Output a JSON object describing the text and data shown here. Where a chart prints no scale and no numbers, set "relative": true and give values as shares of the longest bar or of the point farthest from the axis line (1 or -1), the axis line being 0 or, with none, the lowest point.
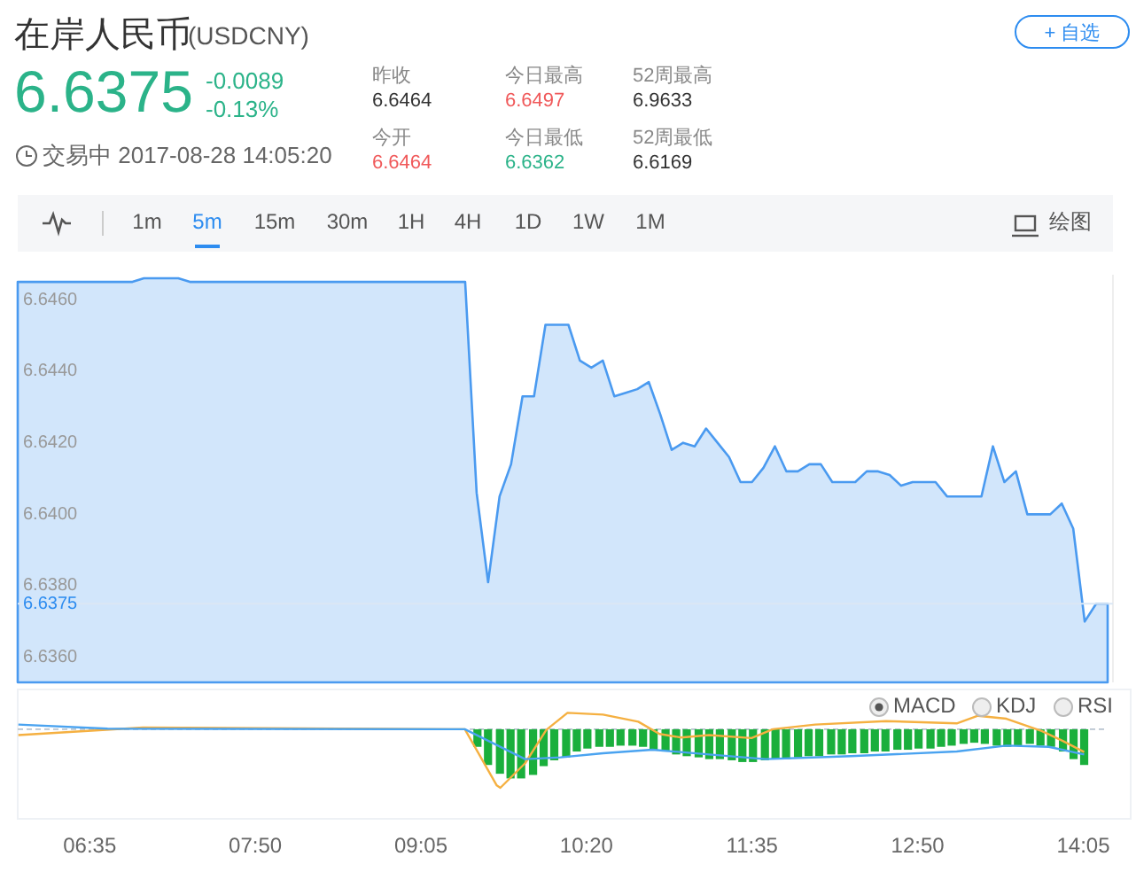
{
  "chart_data": [
    {
      "type": "area",
      "title": "在岸人民币",
      "subtitle": "(USDCNY)",
      "annotations": [
        "6.6375",
        "-0.0089",
        "-0.13%",
        "交易中 2017-08-28 14:05:20",
        "昨收",
        "6.6464",
        "今日最高",
        "6.6497",
        "52周最高",
        "6.9633",
        "今开",
        "6.6464",
        "今日最低",
        "6.6362",
        "52周最低",
        "6.6169",
        "+ 自选",
        "1m",
        "5m",
        "15m",
        "30m",
        "1H",
        "4H",
        "1D",
        "1W",
        "1M",
        "绘图"
      ],
      "color": "#4a9af0",
      "categories": [
        null,
        null,
        null,
        null,
        null,
        null,
        null,
        null,
        null,
        null,
        null,
        null,
        null,
        null,
        null,
        null,
        null,
        null,
        null,
        null,
        null,
        null,
        null,
        null,
        null,
        null,
        null,
        null,
        null,
        null,
        null,
        null,
        null,
        null,
        null,
        null,
        null,
        null,
        null,
        null,
        null,
        null,
        null,
        null,
        null,
        null,
        null,
        null,
        null,
        null,
        null,
        null,
        null,
        null,
        null,
        null,
        null,
        null,
        null,
        null,
        null,
        null,
        null,
        null,
        null,
        null,
        null,
        null,
        null,
        null,
        null,
        null,
        null,
        null,
        null,
        null,
        null,
        null,
        null,
        null,
        null,
        null,
        null,
        null,
        null,
        null,
        null,
        null,
        null,
        null,
        null,
        null,
        null,
        null,
        null,
        null
      ],
      "values": [
        6.6465,
        6.6465,
        6.6465,
        6.6465,
        6.6465,
        6.6465,
        6.6465,
        6.6465,
        6.6465,
        6.6465,
        6.6465,
        6.6466,
        6.6466,
        6.6466,
        6.6466,
        6.6465,
        6.6465,
        6.6465,
        6.6465,
        6.6465,
        6.6465,
        6.6465,
        6.6465,
        6.6465,
        6.6465,
        6.6465,
        6.6465,
        6.6465,
        6.6465,
        6.6465,
        6.6465,
        6.6465,
        6.6465,
        6.6465,
        6.6465,
        6.6465,
        6.6465,
        6.6465,
        6.6465,
        6.6465,
        6.6406,
        6.6381,
        6.6405,
        6.6414,
        6.6433,
        6.6433,
        6.6453,
        6.6453,
        6.6453,
        6.6443,
        6.6441,
        6.6443,
        6.6433,
        6.6434,
        6.6435,
        6.6437,
        6.6428,
        6.6418,
        6.642,
        6.6419,
        6.6424,
        6.642,
        6.6416,
        6.6409,
        6.6409,
        6.6413,
        6.6419,
        6.6412,
        6.6412,
        6.6414,
        6.6414,
        6.6409,
        6.6409,
        6.6409,
        6.6412,
        6.6412,
        6.6411,
        6.6408,
        6.6409,
        6.6409,
        6.6409,
        6.6405,
        6.6405,
        6.6405,
        6.6405,
        6.6419,
        6.6409,
        6.6412,
        6.64,
        6.64,
        6.64,
        6.6403,
        6.6396,
        6.637,
        6.6375,
        6.6375
      ],
      "ylim": [
        6.6353,
        6.6467
      ],
      "yticks": [
        {
          "value": 6.646,
          "label": "6.6460"
        },
        {
          "value": 6.644,
          "label": "6.6440"
        },
        {
          "value": 6.642,
          "label": "6.6420"
        },
        {
          "value": 6.64,
          "label": "6.6400"
        },
        {
          "value": 6.638,
          "label": "6.6380"
        },
        {
          "value": 6.636,
          "label": "6.6360"
        }
      ],
      "ref_lines": [
        {
          "axis": "y",
          "value": 6.6375,
          "label": "6.6375",
          "color": "#dbe7f5"
        }
      ],
      "tick_labels": "y"
    },
    {
      "type": "bar",
      "relative": true,
      "annotations": [
        "MACD",
        "KDJ",
        "RSI"
      ],
      "xlim": [
        6.04,
        14.12
      ],
      "xticks": [
        {
          "value": 6.5833,
          "label": "06:35"
        },
        {
          "value": 7.8333,
          "label": "07:50"
        },
        {
          "value": 9.0833,
          "label": "09:05"
        },
        {
          "value": 10.3333,
          "label": "10:20"
        },
        {
          "value": 11.5833,
          "label": "11:35"
        },
        {
          "value": 12.8333,
          "label": "12:50"
        },
        {
          "value": 14.0833,
          "label": "14:05"
        }
      ],
      "tick_labels": "x",
      "ref_lines": [
        {
          "axis": "y",
          "value": 0,
          "color": "#b8c4d0",
          "line_style": "dashed"
        }
      ],
      "series": [
        {
          "type": "bar",
          "color": "#1aaf3c",
          "x": [
            9.51,
            9.59,
            9.68,
            9.76,
            9.84,
            9.93,
            10.01,
            10.09,
            10.18,
            10.26,
            10.34,
            10.43,
            10.51,
            10.59,
            10.68,
            10.76,
            10.84,
            10.93,
            11.01,
            11.09,
            11.18,
            11.26,
            11.34,
            11.43,
            11.51,
            11.59,
            11.68,
            11.76,
            11.84,
            11.93,
            12.01,
            12.09,
            12.18,
            12.26,
            12.34,
            12.43,
            12.51,
            12.59,
            12.68,
            12.76,
            12.84,
            12.93,
            13.01,
            13.09,
            13.18,
            13.26,
            13.34,
            13.43,
            13.51,
            13.59,
            13.68,
            13.76,
            13.84,
            13.93,
            14.01,
            14.09
          ],
          "values": [
            -0.3,
            -0.61,
            -0.76,
            -0.84,
            -0.84,
            -0.78,
            -0.63,
            -0.53,
            -0.48,
            -0.38,
            -0.33,
            -0.3,
            -0.3,
            -0.28,
            -0.28,
            -0.3,
            -0.35,
            -0.38,
            -0.43,
            -0.46,
            -0.48,
            -0.51,
            -0.51,
            -0.53,
            -0.56,
            -0.56,
            -0.53,
            -0.51,
            -0.51,
            -0.48,
            -0.46,
            -0.46,
            -0.43,
            -0.43,
            -0.41,
            -0.41,
            -0.38,
            -0.38,
            -0.35,
            -0.35,
            -0.33,
            -0.33,
            -0.3,
            -0.28,
            -0.25,
            -0.23,
            -0.25,
            -0.28,
            -0.3,
            -0.28,
            -0.25,
            -0.28,
            -0.3,
            -0.38,
            -0.51,
            -0.61
          ]
        },
        {
          "type": "line",
          "color": "#f5b041",
          "x": [
            6.045,
            6.985,
            9.415,
            9.656,
            9.683,
            9.87,
            10.03,
            10.19,
            10.458,
            10.724,
            10.885,
            11.045,
            11.259,
            11.579,
            11.74,
            12.06,
            12.594,
            13.128,
            13.288,
            13.503,
            13.769,
            13.929,
            14.09
          ],
          "values": [
            -0.1,
            0.03,
            0,
            -0.96,
            -1,
            -0.58,
            -0.01,
            0.28,
            0.25,
            0.13,
            -0.08,
            -0.14,
            -0.1,
            -0.15,
            0,
            0.08,
            0.14,
            0.1,
            0.23,
            0.18,
            -0.03,
            -0.2,
            -0.39
          ]
        },
        {
          "type": "line",
          "color": "#4aa3f0",
          "x": [
            6.045,
            6.718,
            9.415,
            9.87,
            10.137,
            10.458,
            10.831,
            11.259,
            11.686,
            12.327,
            13.128,
            13.503,
            13.823,
            14.09
          ],
          "values": [
            0.08,
            0.01,
            0,
            -0.51,
            -0.48,
            -0.41,
            -0.35,
            -0.43,
            -0.51,
            -0.46,
            -0.38,
            -0.28,
            -0.3,
            -0.43
          ]
        }
      ]
    }
  ]
}
